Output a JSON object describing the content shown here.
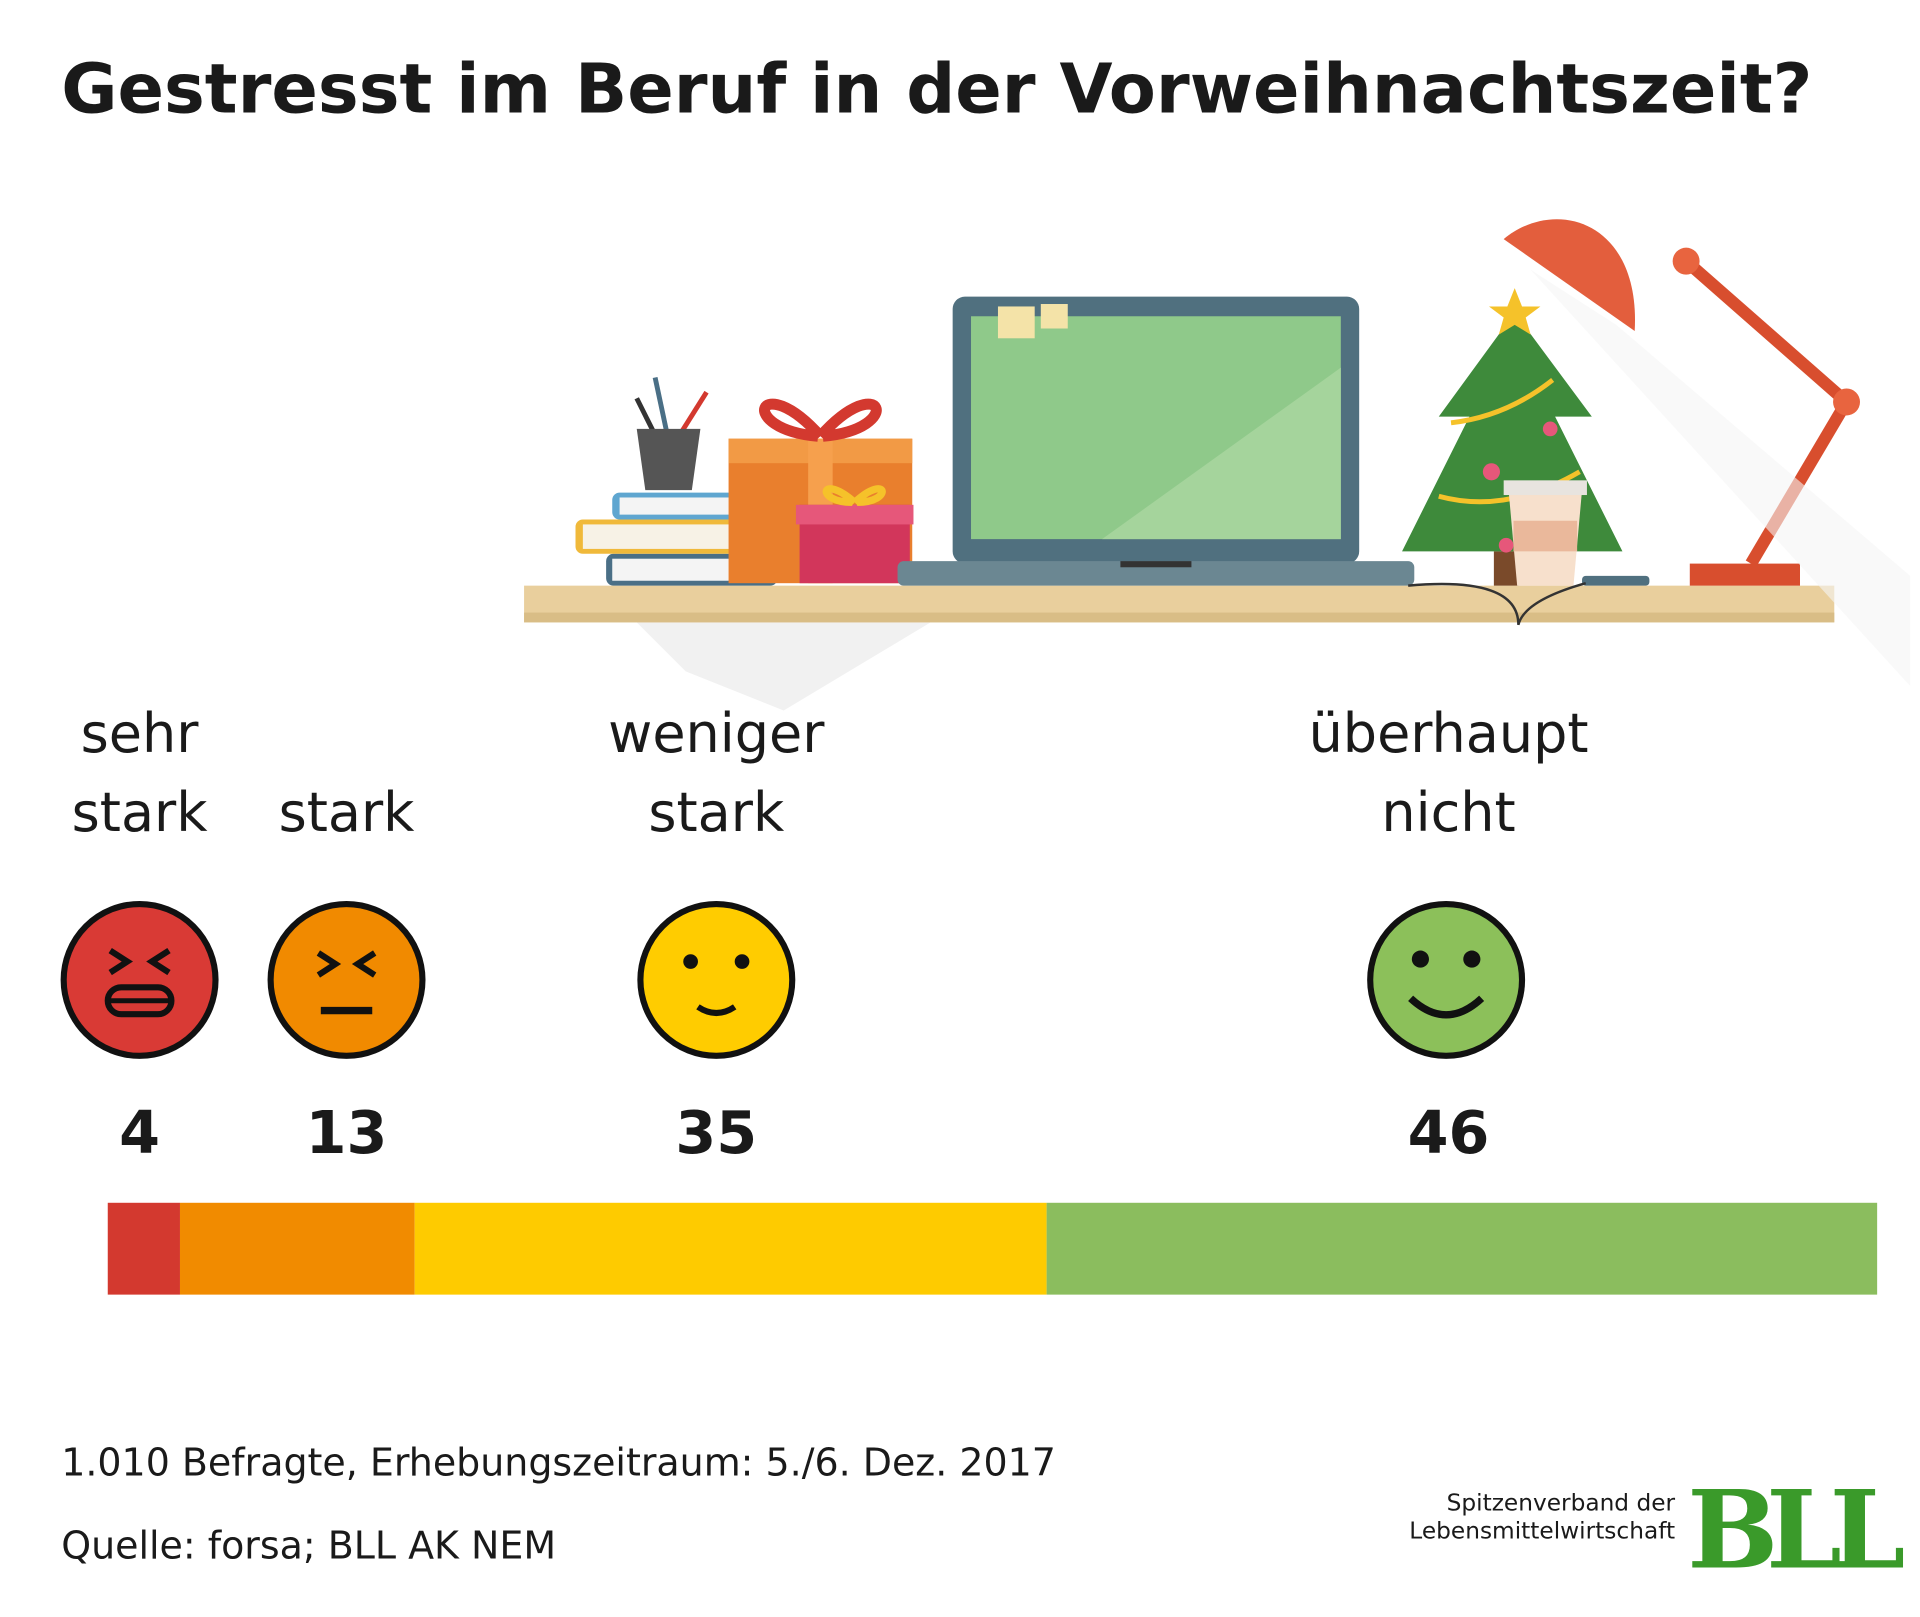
{
  "chart_data": {
    "type": "stacked_bar",
    "title": "Gestresst im Beruf in der Vorweihnachtszeit?",
    "categories": [
      "sehr stark",
      "stark",
      "weniger stark",
      "überhaupt nicht"
    ],
    "values": [
      4,
      13,
      35,
      46
    ],
    "colors": [
      "#d3392f",
      "#f18b00",
      "#fecb00",
      "#8bbd5e"
    ],
    "footnote": "1.010 Befragte, Erhebungszeitraum: 5./6. Dez. 2017",
    "source": "Quelle: forsa; BLL AK NEM",
    "logo": {
      "tagline": [
        "Spitzenverband der",
        "Lebensmittelwirtschaft"
      ],
      "mark": "BLL"
    }
  }
}
